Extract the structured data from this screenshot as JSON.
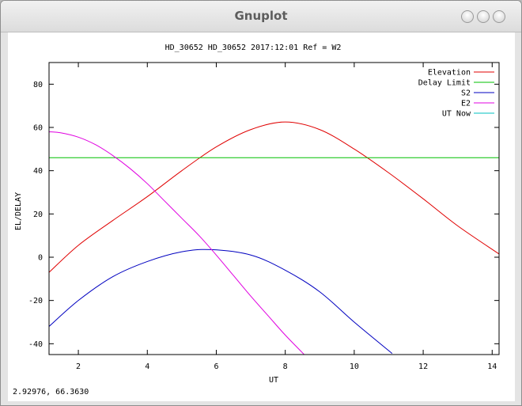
{
  "window": {
    "title": "Gnuplot"
  },
  "chart_data": {
    "type": "line",
    "title": "HD_30652 HD_30652 2017:12:01 Ref = W2",
    "xlabel": "UT",
    "ylabel": "EL/DELAY",
    "xlim": [
      1.15,
      14.2
    ],
    "ylim": [
      -45,
      90
    ],
    "xticks": [
      "2",
      "4",
      "6",
      "8",
      "10",
      "12",
      "14"
    ],
    "yticks": [
      "-40",
      "-20",
      "0",
      "20",
      "40",
      "60",
      "80"
    ],
    "xtick_values": [
      2,
      4,
      6,
      8,
      10,
      12,
      14
    ],
    "ytick_values": [
      -40,
      -20,
      0,
      20,
      40,
      60,
      80
    ],
    "grid": false,
    "legend_position": "top-right",
    "series": [
      {
        "name": "Elevation",
        "color": "#e00000",
        "x": [
          1.15,
          2,
          3,
          4,
          5,
          6,
          7,
          8,
          9,
          10,
          11,
          12,
          13,
          14.2
        ],
        "y": [
          -7,
          5.5,
          17,
          28,
          40,
          51,
          59,
          62.5,
          59,
          50,
          39,
          27,
          14.5,
          1.5
        ]
      },
      {
        "name": "Delay Limit",
        "color": "#00c000",
        "x": [
          1.15,
          14.2
        ],
        "y": [
          46,
          46
        ]
      },
      {
        "name": "S2",
        "color": "#0000c0",
        "x": [
          1.15,
          2,
          3,
          4,
          5,
          5.85,
          7,
          8,
          9,
          10,
          11.1
        ],
        "y": [
          -32,
          -20,
          -9,
          -2,
          2.5,
          3.5,
          1,
          -6,
          -16,
          -30,
          -44.5
        ]
      },
      {
        "name": "E2",
        "color": "#e000e0",
        "x": [
          1.15,
          1.5,
          2,
          2.5,
          3,
          3.5,
          4,
          4.5,
          5,
          5.5,
          6,
          6.5,
          7,
          7.5,
          8,
          8.55
        ],
        "y": [
          58,
          57.5,
          55.5,
          52,
          47,
          41,
          34,
          26,
          18,
          10,
          1,
          -8.5,
          -18,
          -27,
          -36,
          -45
        ]
      },
      {
        "name": "UT Now",
        "color": "#00c0c0",
        "x": [],
        "y": []
      }
    ]
  },
  "status": {
    "coordinates": "2.92976,  66.3630"
  }
}
